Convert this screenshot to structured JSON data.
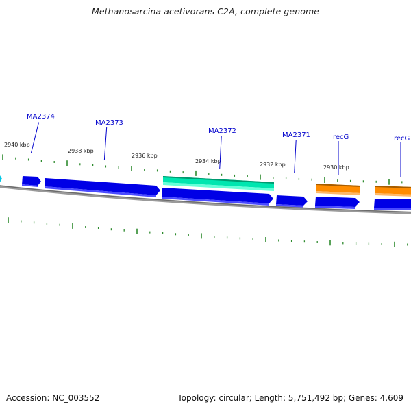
{
  "title": "Methanosarcina acetivorans C2A, complete genome",
  "footer": {
    "accession": "Accession: NC_003552",
    "stats": "Topology: circular; Length: 5,751,492 bp; Genes: 4,609"
  },
  "colors": {
    "background": "#ffffff",
    "backbone": "#808080",
    "tick": "#2e8b2e",
    "gene_label": "#0000cc",
    "gene_label_line": "#0000cc",
    "cds_forward": "#0000e6",
    "cds_highlight": "#00e6b0",
    "cds_orange": "#ff8c00",
    "cds_small": "#00c8e6"
  },
  "position_labels": [
    "2940 kbp",
    "2938 kbp",
    "2936 kbp",
    "2934 kbp",
    "2932 kbp",
    "2930 kbp"
  ],
  "gene_labels": [
    "MA2374",
    "MA2373",
    "MA2372",
    "MA2371",
    "recG",
    "recG"
  ],
  "features": [
    {
      "kind": "cds",
      "color": "cds_small"
    },
    {
      "kind": "cds",
      "color": "cds_forward"
    },
    {
      "kind": "cds",
      "color": "cds_forward"
    },
    {
      "kind": "cds",
      "color": "cds_highlight"
    },
    {
      "kind": "cds",
      "color": "cds_forward"
    },
    {
      "kind": "cds",
      "color": "cds_forward"
    },
    {
      "kind": "cds",
      "color": "cds_orange"
    },
    {
      "kind": "cds",
      "color": "cds_forward"
    },
    {
      "kind": "cds",
      "color": "cds_orange"
    },
    {
      "kind": "cds",
      "color": "cds_forward"
    }
  ]
}
